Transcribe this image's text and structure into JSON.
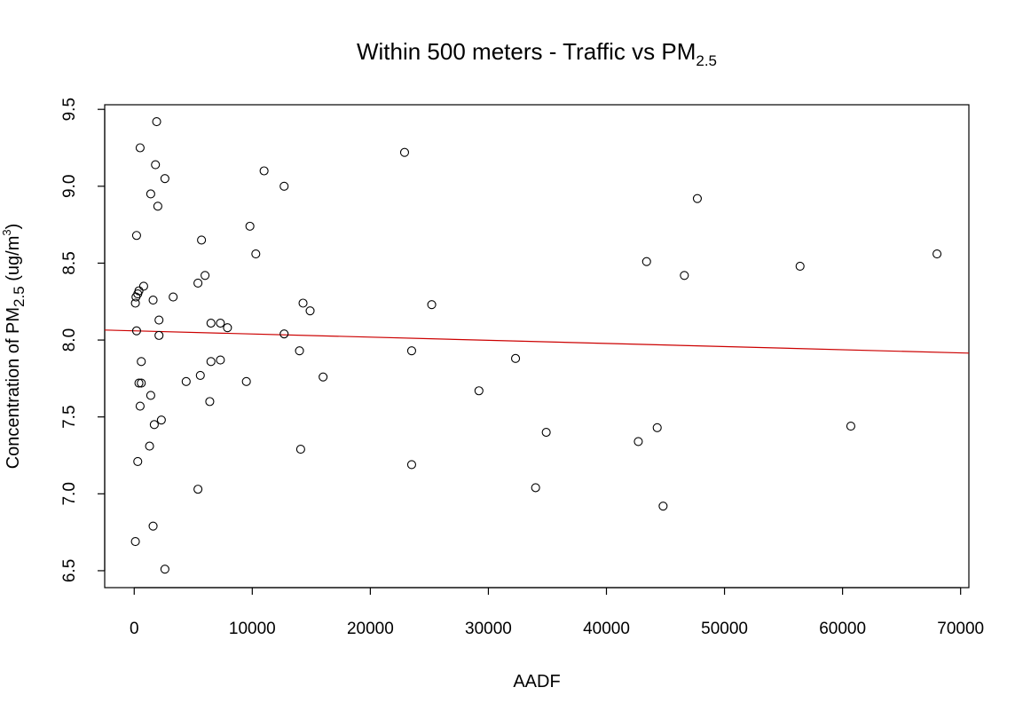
{
  "chart_data": {
    "type": "scatter",
    "title": "Within 500 meters - Traffic vs PM",
    "title_subscript": "2.5",
    "xlabel": "AADF",
    "ylabel_prefix": "Concentration of PM",
    "ylabel_subscript": "2.5",
    "ylabel_unit_open": " (ug/m",
    "ylabel_unit_sup": "3",
    "ylabel_unit_close": ")",
    "xlim": [
      -2500,
      70700
    ],
    "ylim": [
      6.39,
      9.53
    ],
    "x_ticks": [
      0,
      10000,
      20000,
      30000,
      40000,
      50000,
      60000,
      70000
    ],
    "x_tick_labels": [
      "0",
      "10000",
      "20000",
      "30000",
      "40000",
      "50000",
      "60000",
      "70000"
    ],
    "y_ticks": [
      6.5,
      7.0,
      7.5,
      8.0,
      8.5,
      9.0,
      9.5
    ],
    "y_tick_labels": [
      "6.5",
      "7.0",
      "7.5",
      "8.0",
      "8.5",
      "9.0",
      "9.5"
    ],
    "grid": false,
    "legend": "none",
    "point_color": "#000000",
    "fit_line_color": "#cc0000",
    "fit_line": {
      "x": [
        -2500,
        70700
      ],
      "y": [
        8.065,
        7.915
      ]
    },
    "points": [
      {
        "x": 1900,
        "y": 9.42
      },
      {
        "x": 500,
        "y": 9.25
      },
      {
        "x": 1800,
        "y": 9.14
      },
      {
        "x": 2600,
        "y": 9.05
      },
      {
        "x": 1400,
        "y": 8.95
      },
      {
        "x": 2000,
        "y": 8.87
      },
      {
        "x": 200,
        "y": 8.68
      },
      {
        "x": 800,
        "y": 8.35
      },
      {
        "x": 400,
        "y": 8.32
      },
      {
        "x": 300,
        "y": 8.3
      },
      {
        "x": 150,
        "y": 8.28
      },
      {
        "x": 1600,
        "y": 8.26
      },
      {
        "x": 100,
        "y": 8.24
      },
      {
        "x": 3300,
        "y": 8.28
      },
      {
        "x": 2100,
        "y": 8.13
      },
      {
        "x": 200,
        "y": 8.06
      },
      {
        "x": 2100,
        "y": 8.03
      },
      {
        "x": 600,
        "y": 7.86
      },
      {
        "x": 400,
        "y": 7.72
      },
      {
        "x": 600,
        "y": 7.72
      },
      {
        "x": 1400,
        "y": 7.64
      },
      {
        "x": 500,
        "y": 7.57
      },
      {
        "x": 2300,
        "y": 7.48
      },
      {
        "x": 1700,
        "y": 7.45
      },
      {
        "x": 1300,
        "y": 7.31
      },
      {
        "x": 300,
        "y": 7.21
      },
      {
        "x": 1600,
        "y": 6.79
      },
      {
        "x": 100,
        "y": 6.69
      },
      {
        "x": 2600,
        "y": 6.51
      },
      {
        "x": 5700,
        "y": 8.65
      },
      {
        "x": 6000,
        "y": 8.42
      },
      {
        "x": 5400,
        "y": 8.37
      },
      {
        "x": 6500,
        "y": 8.11
      },
      {
        "x": 7300,
        "y": 8.11
      },
      {
        "x": 7900,
        "y": 8.08
      },
      {
        "x": 6500,
        "y": 7.86
      },
      {
        "x": 7300,
        "y": 7.87
      },
      {
        "x": 5600,
        "y": 7.77
      },
      {
        "x": 4400,
        "y": 7.73
      },
      {
        "x": 6400,
        "y": 7.6
      },
      {
        "x": 5400,
        "y": 7.03
      },
      {
        "x": 11000,
        "y": 9.1
      },
      {
        "x": 12700,
        "y": 9.0
      },
      {
        "x": 9800,
        "y": 8.74
      },
      {
        "x": 10300,
        "y": 8.56
      },
      {
        "x": 9500,
        "y": 7.73
      },
      {
        "x": 14300,
        "y": 8.24
      },
      {
        "x": 14900,
        "y": 8.19
      },
      {
        "x": 12700,
        "y": 8.04
      },
      {
        "x": 14000,
        "y": 7.93
      },
      {
        "x": 16000,
        "y": 7.76
      },
      {
        "x": 14100,
        "y": 7.29
      },
      {
        "x": 22900,
        "y": 9.22
      },
      {
        "x": 25200,
        "y": 8.23
      },
      {
        "x": 23500,
        "y": 7.93
      },
      {
        "x": 23500,
        "y": 7.19
      },
      {
        "x": 29200,
        "y": 7.67
      },
      {
        "x": 32300,
        "y": 7.88
      },
      {
        "x": 34900,
        "y": 7.4
      },
      {
        "x": 34000,
        "y": 7.04
      },
      {
        "x": 47700,
        "y": 8.92
      },
      {
        "x": 43400,
        "y": 8.51
      },
      {
        "x": 46600,
        "y": 8.42
      },
      {
        "x": 42700,
        "y": 7.34
      },
      {
        "x": 44300,
        "y": 7.43
      },
      {
        "x": 44800,
        "y": 6.92
      },
      {
        "x": 56400,
        "y": 8.48
      },
      {
        "x": 60700,
        "y": 7.44
      },
      {
        "x": 68000,
        "y": 8.56
      }
    ]
  }
}
